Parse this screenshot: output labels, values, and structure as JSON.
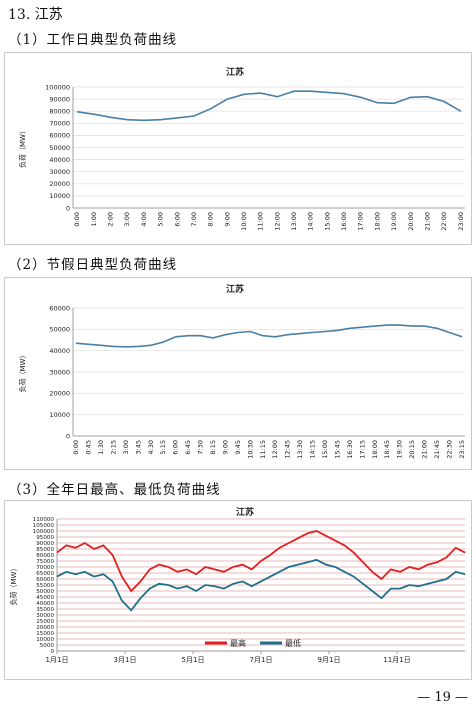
{
  "section": {
    "title": "13. 江苏"
  },
  "charts_text": {
    "c1_heading": "（1）工作日典型负荷曲线",
    "c2_heading": "（2）节假日典型负荷曲线",
    "c3_heading": "（3）全年日最高、最低负荷曲线"
  },
  "page_number": "— 19 —",
  "chart_data": [
    {
      "type": "line",
      "title": "江苏",
      "ylabel": "负荷（MW）",
      "ylim": [
        0,
        100000
      ],
      "y_ticks": [
        "100000",
        "90000",
        "80000",
        "70000",
        "60000",
        "50000",
        "40000",
        "30000",
        "20000",
        "10000",
        "0"
      ],
      "x": [
        "0:00",
        "1:00",
        "2:00",
        "3:00",
        "4:00",
        "5:00",
        "6:00",
        "7:00",
        "8:00",
        "9:00",
        "10:00",
        "11:00",
        "12:00",
        "13:00",
        "14:00",
        "15:00",
        "16:00",
        "17:00",
        "18:00",
        "19:00",
        "20:00",
        "21:00",
        "22:00",
        "23:00"
      ],
      "series": [
        {
          "values": [
            79500,
            77500,
            75000,
            73000,
            72500,
            73000,
            74500,
            76000,
            82000,
            90000,
            94000,
            95000,
            92000,
            96500,
            96500,
            95500,
            94500,
            91500,
            87000,
            86500,
            91500,
            92000,
            88000,
            80000
          ],
          "color": "#4a7fa5"
        }
      ],
      "grid": true
    },
    {
      "type": "line",
      "title": "江苏",
      "ylabel": "负荷（MW）",
      "ylim": [
        0,
        60000
      ],
      "y_ticks": [
        "60000",
        "50000",
        "40000",
        "30000",
        "20000",
        "10000",
        "0"
      ],
      "x": [
        "0:00",
        "0:45",
        "1:30",
        "2:15",
        "3:00",
        "3:45",
        "4:30",
        "5:15",
        "6:00",
        "6:45",
        "7:30",
        "8:15",
        "9:00",
        "9:45",
        "10:30",
        "11:15",
        "12:00",
        "12:45",
        "13:30",
        "14:15",
        "15:00",
        "15:45",
        "16:30",
        "17:15",
        "18:00",
        "18:45",
        "19:30",
        "20:15",
        "21:00",
        "21:45",
        "22:30",
        "23:15"
      ],
      "series": [
        {
          "values": [
            43500,
            43000,
            42500,
            42000,
            41800,
            42000,
            42500,
            44000,
            46500,
            47000,
            47000,
            46000,
            47500,
            48500,
            49000,
            47000,
            46500,
            47500,
            48000,
            48500,
            49000,
            49500,
            50500,
            51000,
            51500,
            52000,
            52000,
            51500,
            51500,
            50500,
            48500,
            46500
          ],
          "color": "#4a7fa5"
        }
      ],
      "grid": true
    },
    {
      "type": "line",
      "title": "江苏",
      "ylabel": "负荷（MW）",
      "ylim": [
        0,
        110000
      ],
      "y_ticks": [
        "110000",
        "105000",
        "100000",
        "95000",
        "90000",
        "85000",
        "80000",
        "75000",
        "70000",
        "65000",
        "60000",
        "55000",
        "50000",
        "45000",
        "40000",
        "35000",
        "30000",
        "25000",
        "20000",
        "15000",
        "10000",
        "5000",
        "0"
      ],
      "x_ticks": [
        "1月1日",
        "3月1日",
        "5月1日",
        "7月1日",
        "9月1日",
        "11月1日"
      ],
      "series": [
        {
          "name": "最高",
          "color": "#e02020",
          "values": [
            82000,
            88000,
            86000,
            90000,
            85000,
            88000,
            80000,
            62000,
            50000,
            58000,
            68000,
            72000,
            70000,
            66000,
            68000,
            64000,
            70000,
            68000,
            66000,
            70000,
            72000,
            68000,
            75000,
            80000,
            86000,
            90000,
            94000,
            98000,
            100000,
            96000,
            92000,
            88000,
            82000,
            74000,
            66000,
            60000,
            68000,
            66000,
            70000,
            68000,
            72000,
            74000,
            78000,
            86000,
            82000
          ]
        },
        {
          "name": "最低",
          "color": "#1f6f8b",
          "values": [
            62000,
            66000,
            64000,
            66000,
            62000,
            64000,
            58000,
            42000,
            34000,
            44000,
            52000,
            56000,
            55000,
            52000,
            54000,
            50000,
            55000,
            54000,
            52000,
            56000,
            58000,
            54000,
            58000,
            62000,
            66000,
            70000,
            72000,
            74000,
            76000,
            72000,
            70000,
            66000,
            62000,
            56000,
            50000,
            44000,
            52000,
            52000,
            55000,
            54000,
            56000,
            58000,
            60000,
            66000,
            64000
          ]
        }
      ],
      "legend": "bottom",
      "grid": true
    }
  ]
}
